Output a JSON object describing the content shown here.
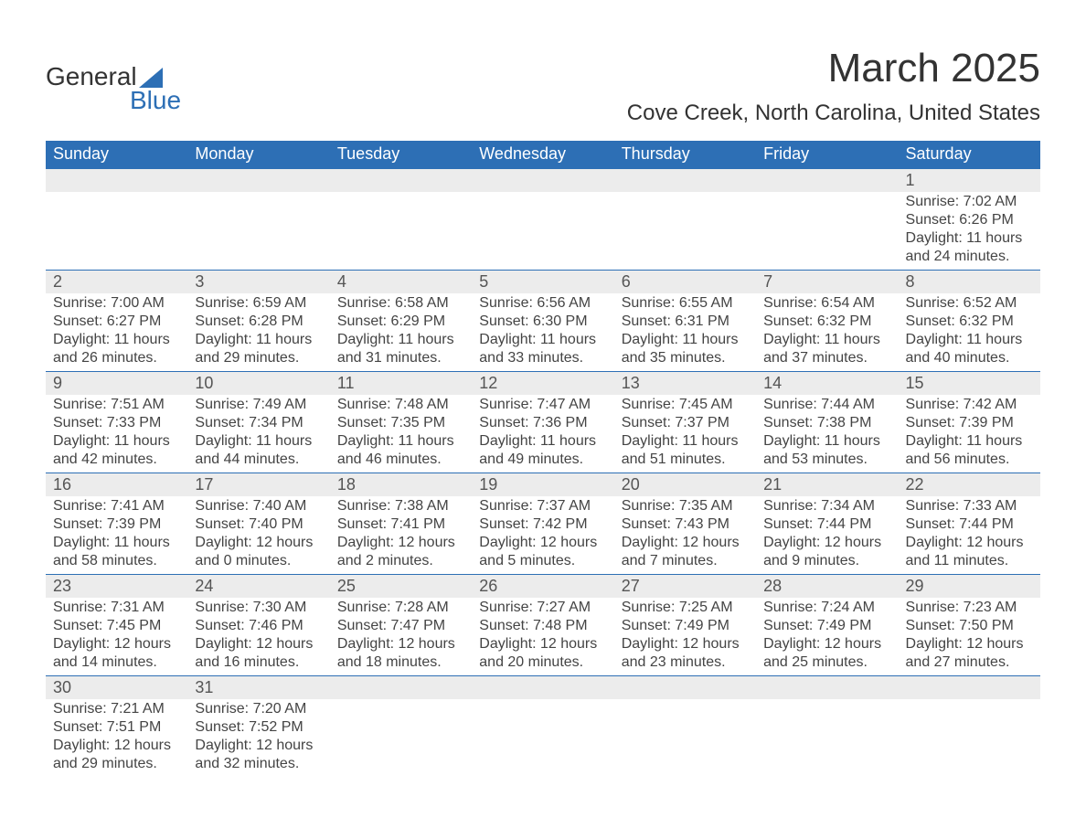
{
  "logo": {
    "text_general": "General",
    "text_blue": "Blue"
  },
  "title": "March 2025",
  "location": "Cove Creek, North Carolina, United States",
  "colors": {
    "header_bg": "#2d6fb5",
    "header_text": "#ffffff",
    "daynum_bg": "#ececec",
    "body_text": "#444444",
    "title_text": "#333333",
    "page_bg": "#ffffff",
    "row_divider": "#2d6fb5",
    "logo_blue": "#2d6fb5"
  },
  "layout": {
    "columns": 7,
    "col_width_pct": 14.28
  },
  "typography": {
    "title_fontsize": 44,
    "location_fontsize": 24,
    "dow_fontsize": 18,
    "daynum_fontsize": 18,
    "cell_fontsize": 16,
    "logo_fontsize": 28
  },
  "days_of_week": [
    "Sunday",
    "Monday",
    "Tuesday",
    "Wednesday",
    "Thursday",
    "Friday",
    "Saturday"
  ],
  "weeks": [
    [
      null,
      null,
      null,
      null,
      null,
      null,
      {
        "n": "1",
        "sr": "Sunrise: 7:02 AM",
        "ss": "Sunset: 6:26 PM",
        "d1": "Daylight: 11 hours",
        "d2": "and 24 minutes."
      }
    ],
    [
      {
        "n": "2",
        "sr": "Sunrise: 7:00 AM",
        "ss": "Sunset: 6:27 PM",
        "d1": "Daylight: 11 hours",
        "d2": "and 26 minutes."
      },
      {
        "n": "3",
        "sr": "Sunrise: 6:59 AM",
        "ss": "Sunset: 6:28 PM",
        "d1": "Daylight: 11 hours",
        "d2": "and 29 minutes."
      },
      {
        "n": "4",
        "sr": "Sunrise: 6:58 AM",
        "ss": "Sunset: 6:29 PM",
        "d1": "Daylight: 11 hours",
        "d2": "and 31 minutes."
      },
      {
        "n": "5",
        "sr": "Sunrise: 6:56 AM",
        "ss": "Sunset: 6:30 PM",
        "d1": "Daylight: 11 hours",
        "d2": "and 33 minutes."
      },
      {
        "n": "6",
        "sr": "Sunrise: 6:55 AM",
        "ss": "Sunset: 6:31 PM",
        "d1": "Daylight: 11 hours",
        "d2": "and 35 minutes."
      },
      {
        "n": "7",
        "sr": "Sunrise: 6:54 AM",
        "ss": "Sunset: 6:32 PM",
        "d1": "Daylight: 11 hours",
        "d2": "and 37 minutes."
      },
      {
        "n": "8",
        "sr": "Sunrise: 6:52 AM",
        "ss": "Sunset: 6:32 PM",
        "d1": "Daylight: 11 hours",
        "d2": "and 40 minutes."
      }
    ],
    [
      {
        "n": "9",
        "sr": "Sunrise: 7:51 AM",
        "ss": "Sunset: 7:33 PM",
        "d1": "Daylight: 11 hours",
        "d2": "and 42 minutes."
      },
      {
        "n": "10",
        "sr": "Sunrise: 7:49 AM",
        "ss": "Sunset: 7:34 PM",
        "d1": "Daylight: 11 hours",
        "d2": "and 44 minutes."
      },
      {
        "n": "11",
        "sr": "Sunrise: 7:48 AM",
        "ss": "Sunset: 7:35 PM",
        "d1": "Daylight: 11 hours",
        "d2": "and 46 minutes."
      },
      {
        "n": "12",
        "sr": "Sunrise: 7:47 AM",
        "ss": "Sunset: 7:36 PM",
        "d1": "Daylight: 11 hours",
        "d2": "and 49 minutes."
      },
      {
        "n": "13",
        "sr": "Sunrise: 7:45 AM",
        "ss": "Sunset: 7:37 PM",
        "d1": "Daylight: 11 hours",
        "d2": "and 51 minutes."
      },
      {
        "n": "14",
        "sr": "Sunrise: 7:44 AM",
        "ss": "Sunset: 7:38 PM",
        "d1": "Daylight: 11 hours",
        "d2": "and 53 minutes."
      },
      {
        "n": "15",
        "sr": "Sunrise: 7:42 AM",
        "ss": "Sunset: 7:39 PM",
        "d1": "Daylight: 11 hours",
        "d2": "and 56 minutes."
      }
    ],
    [
      {
        "n": "16",
        "sr": "Sunrise: 7:41 AM",
        "ss": "Sunset: 7:39 PM",
        "d1": "Daylight: 11 hours",
        "d2": "and 58 minutes."
      },
      {
        "n": "17",
        "sr": "Sunrise: 7:40 AM",
        "ss": "Sunset: 7:40 PM",
        "d1": "Daylight: 12 hours",
        "d2": "and 0 minutes."
      },
      {
        "n": "18",
        "sr": "Sunrise: 7:38 AM",
        "ss": "Sunset: 7:41 PM",
        "d1": "Daylight: 12 hours",
        "d2": "and 2 minutes."
      },
      {
        "n": "19",
        "sr": "Sunrise: 7:37 AM",
        "ss": "Sunset: 7:42 PM",
        "d1": "Daylight: 12 hours",
        "d2": "and 5 minutes."
      },
      {
        "n": "20",
        "sr": "Sunrise: 7:35 AM",
        "ss": "Sunset: 7:43 PM",
        "d1": "Daylight: 12 hours",
        "d2": "and 7 minutes."
      },
      {
        "n": "21",
        "sr": "Sunrise: 7:34 AM",
        "ss": "Sunset: 7:44 PM",
        "d1": "Daylight: 12 hours",
        "d2": "and 9 minutes."
      },
      {
        "n": "22",
        "sr": "Sunrise: 7:33 AM",
        "ss": "Sunset: 7:44 PM",
        "d1": "Daylight: 12 hours",
        "d2": "and 11 minutes."
      }
    ],
    [
      {
        "n": "23",
        "sr": "Sunrise: 7:31 AM",
        "ss": "Sunset: 7:45 PM",
        "d1": "Daylight: 12 hours",
        "d2": "and 14 minutes."
      },
      {
        "n": "24",
        "sr": "Sunrise: 7:30 AM",
        "ss": "Sunset: 7:46 PM",
        "d1": "Daylight: 12 hours",
        "d2": "and 16 minutes."
      },
      {
        "n": "25",
        "sr": "Sunrise: 7:28 AM",
        "ss": "Sunset: 7:47 PM",
        "d1": "Daylight: 12 hours",
        "d2": "and 18 minutes."
      },
      {
        "n": "26",
        "sr": "Sunrise: 7:27 AM",
        "ss": "Sunset: 7:48 PM",
        "d1": "Daylight: 12 hours",
        "d2": "and 20 minutes."
      },
      {
        "n": "27",
        "sr": "Sunrise: 7:25 AM",
        "ss": "Sunset: 7:49 PM",
        "d1": "Daylight: 12 hours",
        "d2": "and 23 minutes."
      },
      {
        "n": "28",
        "sr": "Sunrise: 7:24 AM",
        "ss": "Sunset: 7:49 PM",
        "d1": "Daylight: 12 hours",
        "d2": "and 25 minutes."
      },
      {
        "n": "29",
        "sr": "Sunrise: 7:23 AM",
        "ss": "Sunset: 7:50 PM",
        "d1": "Daylight: 12 hours",
        "d2": "and 27 minutes."
      }
    ],
    [
      {
        "n": "30",
        "sr": "Sunrise: 7:21 AM",
        "ss": "Sunset: 7:51 PM",
        "d1": "Daylight: 12 hours",
        "d2": "and 29 minutes."
      },
      {
        "n": "31",
        "sr": "Sunrise: 7:20 AM",
        "ss": "Sunset: 7:52 PM",
        "d1": "Daylight: 12 hours",
        "d2": "and 32 minutes."
      },
      null,
      null,
      null,
      null,
      null
    ]
  ]
}
